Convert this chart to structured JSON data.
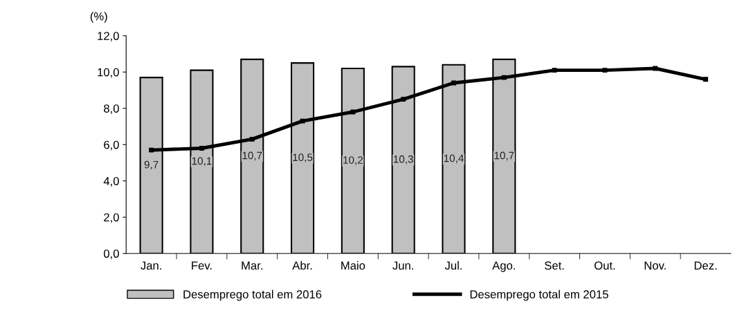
{
  "chart_data": {
    "type": "bar",
    "ylabel": "(%)",
    "categories": [
      "Jan.",
      "Fev.",
      "Mar.",
      "Abr.",
      "Maio",
      "Jun.",
      "Jul.",
      "Ago.",
      "Set.",
      "Out.",
      "Nov.",
      "Dez."
    ],
    "series": [
      {
        "name": "Desemprego total em 2016",
        "color": "#c0c0c0",
        "values": [
          9.7,
          10.1,
          10.7,
          10.5,
          10.2,
          10.3,
          10.4,
          10.7,
          null,
          null,
          null,
          null
        ],
        "value_labels": [
          "9,7",
          "10,1",
          "10,7",
          "10,5",
          "10,2",
          "10,3",
          "10,4",
          "10,7",
          null,
          null,
          null,
          null
        ]
      },
      {
        "name": "Desemprego total em 2015",
        "type": "line",
        "color": "#000000",
        "marker": "square",
        "values": [
          5.7,
          5.8,
          6.3,
          7.3,
          7.8,
          8.5,
          9.4,
          9.7,
          10.1,
          10.1,
          10.2,
          9.6
        ]
      }
    ],
    "ylim": [
      0,
      12
    ],
    "yticks": [
      {
        "value": 0,
        "label": "0,0"
      },
      {
        "value": 2,
        "label": "2,0"
      },
      {
        "value": 4,
        "label": "4,0"
      },
      {
        "value": 6,
        "label": "6,0"
      },
      {
        "value": 8,
        "label": "8,0"
      },
      {
        "value": 10,
        "label": "10,0"
      },
      {
        "value": 12,
        "label": "12,0"
      }
    ],
    "grid": false,
    "legend": "bottom"
  }
}
